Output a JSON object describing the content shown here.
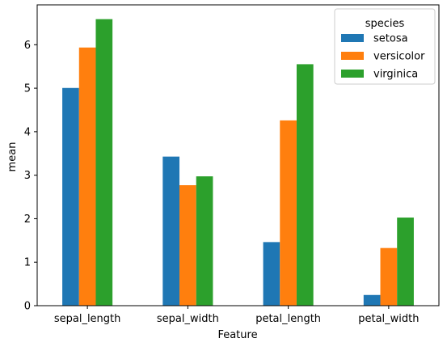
{
  "chart_data": {
    "type": "bar",
    "categories": [
      "sepal_length",
      "sepal_width",
      "petal_length",
      "petal_width"
    ],
    "series": [
      {
        "name": "setosa",
        "color": "#1f77b4",
        "values": [
          5.006,
          3.428,
          1.462,
          0.246
        ]
      },
      {
        "name": "versicolor",
        "color": "#ff7f0e",
        "values": [
          5.936,
          2.77,
          4.26,
          1.326
        ]
      },
      {
        "name": "virginica",
        "color": "#2ca02c",
        "values": [
          6.588,
          2.974,
          5.552,
          2.026
        ]
      }
    ],
    "xlabel": "Feature",
    "ylabel": "mean",
    "ylim": [
      0,
      6.917
    ],
    "yticks": [
      0,
      1,
      2,
      3,
      4,
      5,
      6
    ],
    "legend": {
      "title": "species",
      "position": "top-right"
    },
    "grid": false
  }
}
